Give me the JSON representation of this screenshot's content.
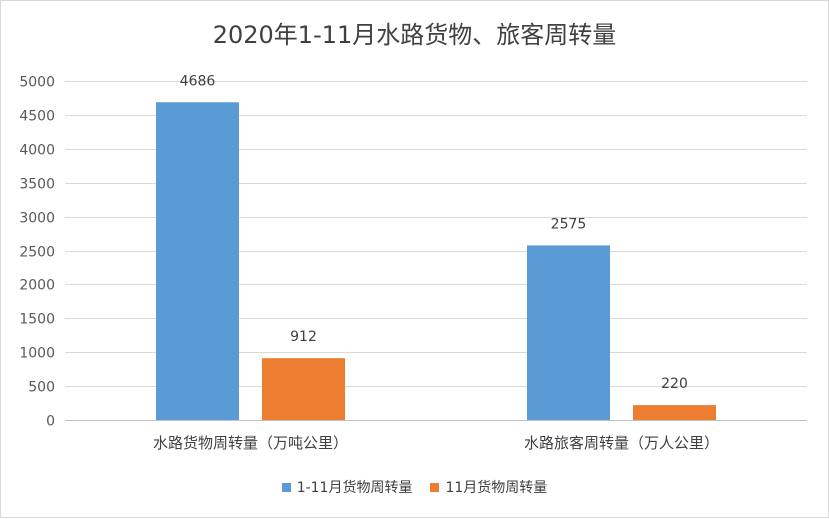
{
  "chart_data": {
    "type": "bar",
    "title": "2020年1-11月水路货物、旅客周转量",
    "categories": [
      "水路货物周转量（万吨公里）",
      "水路旅客周转量（万人公里）"
    ],
    "series": [
      {
        "name": "1-11月货物周转量",
        "values": [
          4686,
          2575
        ],
        "color": "#5b9bd5"
      },
      {
        "name": "11月货物周转量",
        "values": [
          912,
          220
        ],
        "color": "#ed7d31"
      }
    ],
    "ylim": [
      0,
      5000
    ],
    "yticks": [
      0,
      500,
      1000,
      1500,
      2000,
      2500,
      3000,
      3500,
      4000,
      4500,
      5000
    ],
    "grid": true,
    "legend_position": "bottom",
    "data_labels": true,
    "xlabel": "",
    "ylabel": ""
  }
}
